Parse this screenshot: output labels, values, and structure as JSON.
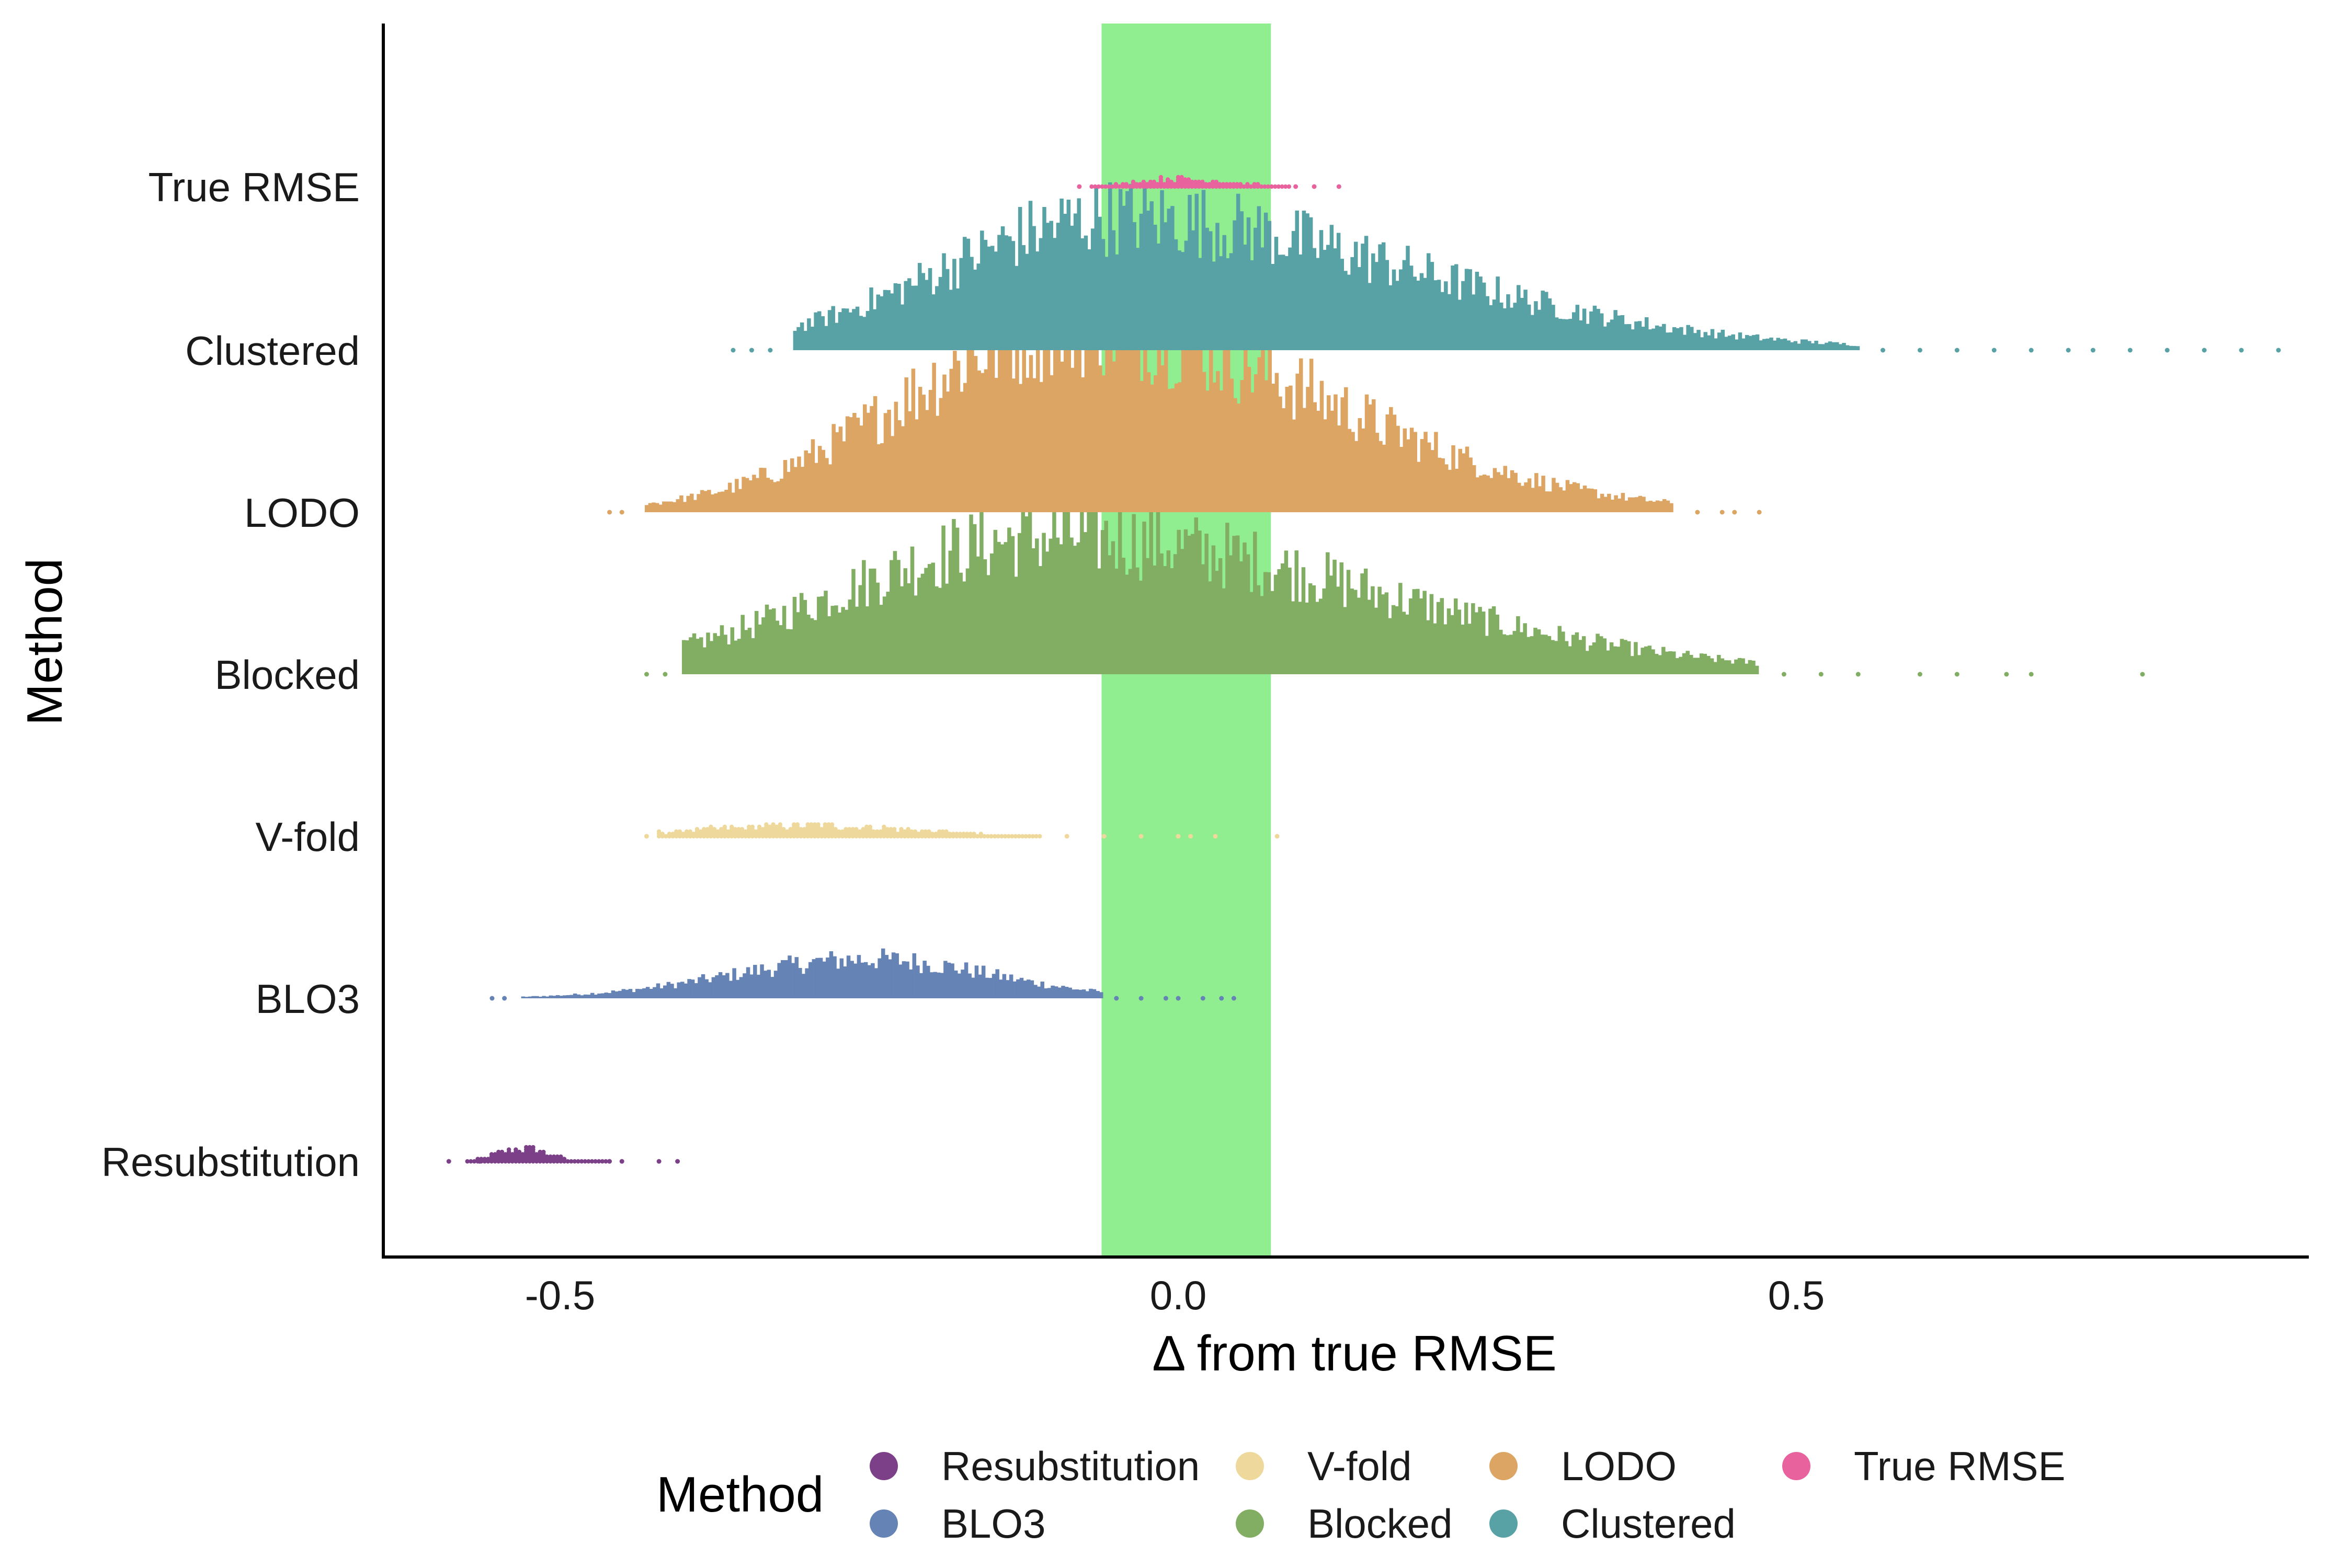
{
  "chart_data": {
    "type": "dot-histogram",
    "title": "",
    "xlabel": "Δ  from true RMSE",
    "ylabel": "Method",
    "xlim": [
      -0.65,
      0.91
    ],
    "x_ticks": [
      {
        "value": -0.5,
        "label": "-0.5"
      },
      {
        "value": 0.0,
        "label": "0.0"
      },
      {
        "value": 0.5,
        "label": "0.5"
      }
    ],
    "grid": false,
    "highlight_band": {
      "x_from": -0.062,
      "x_to": 0.075,
      "color": "#90EE90"
    },
    "categories": [
      "Resubstitution",
      "BLO3",
      "V-fold",
      "Blocked",
      "LODO",
      "Clustered",
      "True RMSE"
    ],
    "series": [
      {
        "name": "Resubstitution",
        "color": "#7B4088",
        "center": -0.53,
        "spread": 0.022,
        "skew": 1.0,
        "peak": 0.1,
        "core": [
          -0.575,
          -0.46
        ],
        "outliers": [
          -0.59,
          -0.565,
          -0.46,
          -0.45,
          -0.42,
          -0.405
        ],
        "kind": "dots"
      },
      {
        "name": "BLO3",
        "color": "#6583B4",
        "center": -0.25,
        "spread": 0.11,
        "skew": 0.9,
        "peak": 0.17,
        "core": [
          -0.53,
          -0.06
        ],
        "outliers": [
          -0.555,
          -0.545,
          -0.05,
          -0.03,
          -0.01,
          0.0,
          0.02,
          0.035,
          0.045
        ],
        "kind": "bars"
      },
      {
        "name": "V-fold",
        "color": "#EED89B",
        "center": -0.3,
        "spread": 0.09,
        "skew": 1.0,
        "peak": 0.085,
        "core": [
          -0.42,
          -0.11
        ],
        "outliers": [
          -0.43,
          -0.09,
          -0.06,
          -0.03,
          0.0,
          0.01,
          0.03,
          0.08
        ],
        "kind": "dots"
      },
      {
        "name": "Blocked",
        "color": "#82AE63",
        "center": -0.1,
        "spread": 0.17,
        "skew": 1.5,
        "peak": 0.6,
        "core": [
          -0.4,
          0.47
        ],
        "outliers": [
          -0.43,
          -0.415,
          0.49,
          0.52,
          0.55,
          0.6,
          0.63,
          0.67,
          0.69,
          0.78
        ],
        "kind": "bars"
      },
      {
        "name": "LODO",
        "color": "#DDA564",
        "center": -0.08,
        "spread": 0.14,
        "skew": 1.4,
        "peak": 0.82,
        "core": [
          -0.43,
          0.4
        ],
        "outliers": [
          -0.46,
          -0.45,
          0.42,
          0.44,
          0.45,
          0.47
        ],
        "kind": "bars"
      },
      {
        "name": "Clustered",
        "color": "#58A2A6",
        "center": -0.05,
        "spread": 0.14,
        "skew": 1.7,
        "peak": 0.58,
        "core": [
          -0.31,
          0.55
        ],
        "outliers": [
          -0.36,
          -0.345,
          -0.33,
          0.57,
          0.6,
          0.63,
          0.66,
          0.69,
          0.72,
          0.74,
          0.77,
          0.8,
          0.83,
          0.86,
          0.89
        ],
        "kind": "bars"
      },
      {
        "name": "True RMSE",
        "color": "#E8629D",
        "center": 0.0,
        "spread": 0.035,
        "skew": 1.2,
        "peak": 0.065,
        "core": [
          -0.07,
          0.09
        ],
        "outliers": [
          -0.08,
          0.095,
          0.11,
          0.13
        ],
        "kind": "dots"
      }
    ],
    "legend": {
      "title": "Method",
      "placement": "bottom",
      "items": [
        {
          "label": "Resubstitution",
          "color": "#7B4088"
        },
        {
          "label": "BLO3",
          "color": "#6583B4"
        },
        {
          "label": "V-fold",
          "color": "#EED89B"
        },
        {
          "label": "Blocked",
          "color": "#82AE63"
        },
        {
          "label": "LODO",
          "color": "#DDA564"
        },
        {
          "label": "Clustered",
          "color": "#58A2A6"
        },
        {
          "label": "True RMSE",
          "color": "#E8629D"
        }
      ]
    }
  }
}
